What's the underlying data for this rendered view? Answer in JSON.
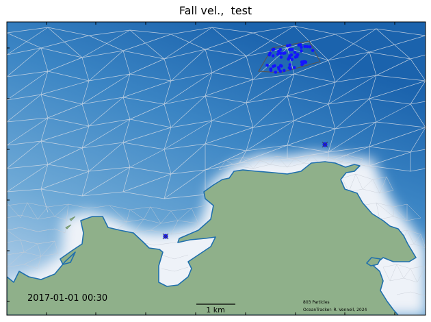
{
  "title": "Fall vel.,  test",
  "timestamp": "2017-01-01 00:30",
  "scale_bar_label": "1 km",
  "particle_count_label": "803 Particles",
  "credit": "OceanTracker- R. Vennell, 2024",
  "colors": {
    "land": "#8fb08a",
    "coastline": "#1f6fad",
    "deep_water": "#1b63ad",
    "shallow_water": "#e9eef6",
    "mesh_lines": "#d0d6de",
    "particles": "#1414ff",
    "release_polygon": "#555555",
    "frame": "#000000"
  },
  "release_points": [
    "point-release-1",
    "point-release-2"
  ]
}
